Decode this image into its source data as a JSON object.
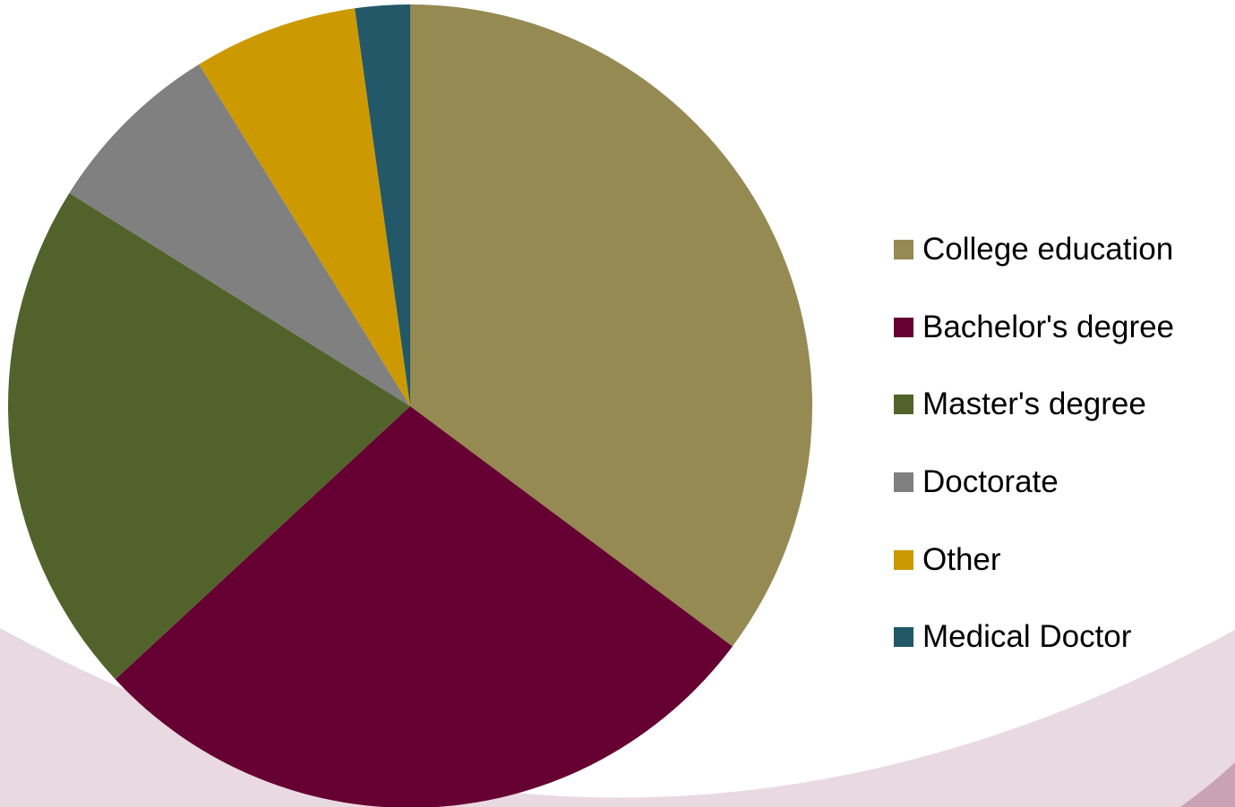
{
  "colors": {
    "background": "#ffffff",
    "deco_light": "#e9d9e1",
    "deco_dark": "#c9a2b6"
  },
  "chart_data": {
    "type": "pie",
    "start_angle": "12 o'clock, clockwise",
    "legend_position": "right",
    "slices": [
      {
        "label": "College education",
        "value": 35.2,
        "color": "#968a53"
      },
      {
        "label": "Bachelor's degree",
        "value": 27.9,
        "color": "#660033"
      },
      {
        "label": "Master's degree",
        "value": 20.8,
        "color": "#51632b"
      },
      {
        "label": "Doctorate",
        "value": 7.3,
        "color": "#808080"
      },
      {
        "label": "Other",
        "value": 6.6,
        "color": "#cc9900"
      },
      {
        "label": "Medical Doctor",
        "value": 2.2,
        "color": "#225868"
      }
    ]
  }
}
